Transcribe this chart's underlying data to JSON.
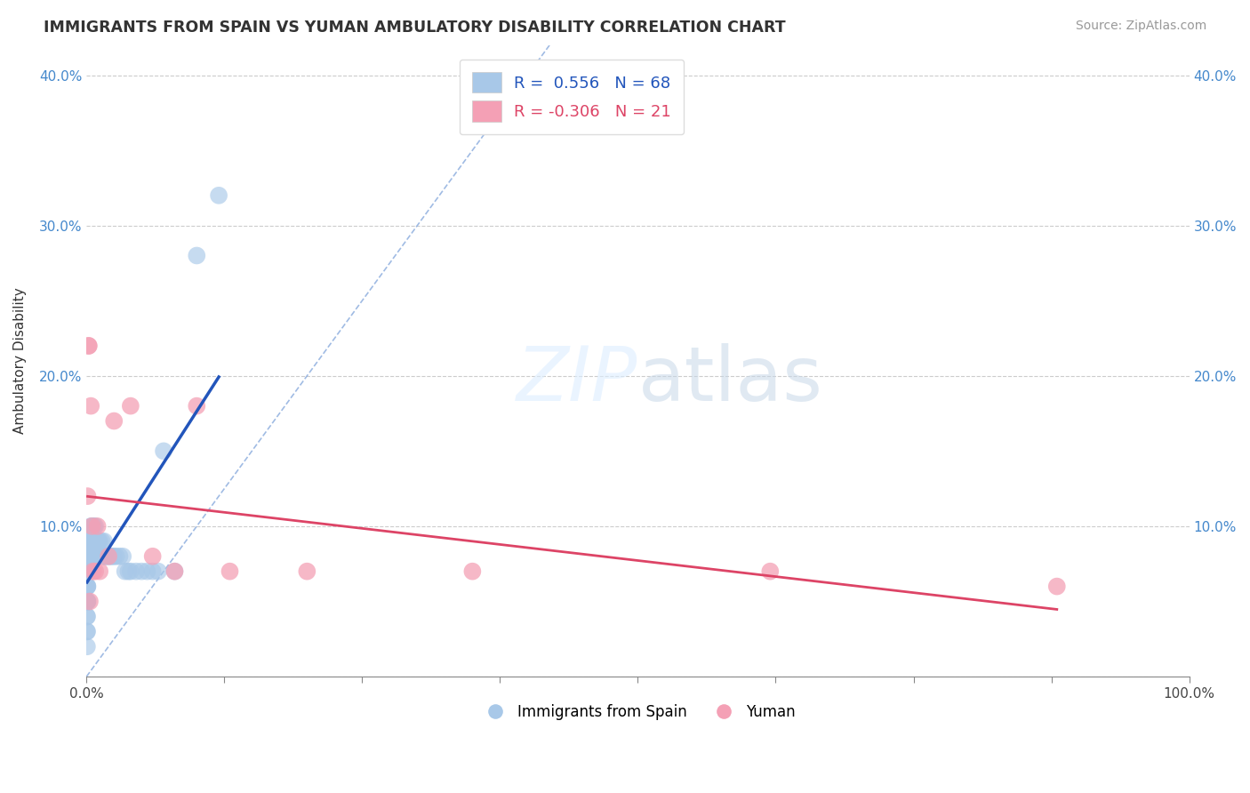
{
  "title": "IMMIGRANTS FROM SPAIN VS YUMAN AMBULATORY DISABILITY CORRELATION CHART",
  "source": "Source: ZipAtlas.com",
  "xlabel": "",
  "ylabel": "Ambulatory Disability",
  "xlim": [
    0,
    1.0
  ],
  "ylim": [
    0,
    0.42
  ],
  "xticks": [
    0.0,
    0.125,
    0.25,
    0.375,
    0.5,
    0.625,
    0.75,
    0.875,
    1.0
  ],
  "xtick_labels_bottom": [
    "0.0%",
    "",
    "",
    "",
    "",
    "",
    "",
    "",
    "100.0%"
  ],
  "yticks": [
    0.0,
    0.1,
    0.2,
    0.3,
    0.4
  ],
  "ytick_labels_left": [
    "",
    "10.0%",
    "20.0%",
    "30.0%",
    "40.0%"
  ],
  "ytick_labels_right": [
    "",
    "10.0%",
    "20.0%",
    "30.0%",
    "40.0%"
  ],
  "blue_R": 0.556,
  "blue_N": 68,
  "pink_R": -0.306,
  "pink_N": 21,
  "blue_color": "#a8c8e8",
  "pink_color": "#f4a0b5",
  "blue_line_color": "#2255bb",
  "pink_line_color": "#dd4466",
  "background_color": "#ffffff",
  "grid_color": "#cccccc",
  "blue_x": [
    0.0005,
    0.0005,
    0.0005,
    0.0005,
    0.0005,
    0.0005,
    0.0005,
    0.0005,
    0.0005,
    0.0005,
    0.0008,
    0.0008,
    0.001,
    0.001,
    0.001,
    0.001,
    0.001,
    0.0015,
    0.0015,
    0.002,
    0.002,
    0.002,
    0.003,
    0.003,
    0.003,
    0.004,
    0.004,
    0.004,
    0.005,
    0.005,
    0.005,
    0.006,
    0.006,
    0.007,
    0.007,
    0.008,
    0.008,
    0.009,
    0.009,
    0.01,
    0.01,
    0.011,
    0.012,
    0.013,
    0.014,
    0.015,
    0.016,
    0.017,
    0.018,
    0.02,
    0.022,
    0.023,
    0.025,
    0.027,
    0.03,
    0.033,
    0.035,
    0.038,
    0.04,
    0.045,
    0.05,
    0.055,
    0.06,
    0.065,
    0.07,
    0.08,
    0.1,
    0.12
  ],
  "blue_y": [
    0.02,
    0.03,
    0.03,
    0.04,
    0.04,
    0.05,
    0.05,
    0.05,
    0.06,
    0.06,
    0.05,
    0.06,
    0.05,
    0.06,
    0.07,
    0.07,
    0.08,
    0.07,
    0.08,
    0.07,
    0.08,
    0.09,
    0.08,
    0.09,
    0.09,
    0.08,
    0.09,
    0.1,
    0.08,
    0.09,
    0.1,
    0.09,
    0.1,
    0.09,
    0.1,
    0.09,
    0.1,
    0.08,
    0.09,
    0.08,
    0.09,
    0.09,
    0.09,
    0.08,
    0.09,
    0.08,
    0.09,
    0.08,
    0.08,
    0.08,
    0.08,
    0.08,
    0.08,
    0.08,
    0.08,
    0.08,
    0.07,
    0.07,
    0.07,
    0.07,
    0.07,
    0.07,
    0.07,
    0.07,
    0.15,
    0.07,
    0.28,
    0.32
  ],
  "pink_x": [
    0.001,
    0.002,
    0.002,
    0.003,
    0.004,
    0.005,
    0.006,
    0.008,
    0.01,
    0.012,
    0.02,
    0.025,
    0.04,
    0.06,
    0.08,
    0.1,
    0.13,
    0.2,
    0.35,
    0.62,
    0.88
  ],
  "pink_y": [
    0.12,
    0.22,
    0.22,
    0.05,
    0.18,
    0.1,
    0.07,
    0.07,
    0.1,
    0.07,
    0.08,
    0.17,
    0.18,
    0.08,
    0.07,
    0.18,
    0.07,
    0.07,
    0.07,
    0.07,
    0.06
  ],
  "legend_blue_label": "R =  0.556   N = 68",
  "legend_pink_label": "R = -0.306   N = 21",
  "bottom_legend_blue": "Immigrants from Spain",
  "bottom_legend_pink": "Yuman"
}
